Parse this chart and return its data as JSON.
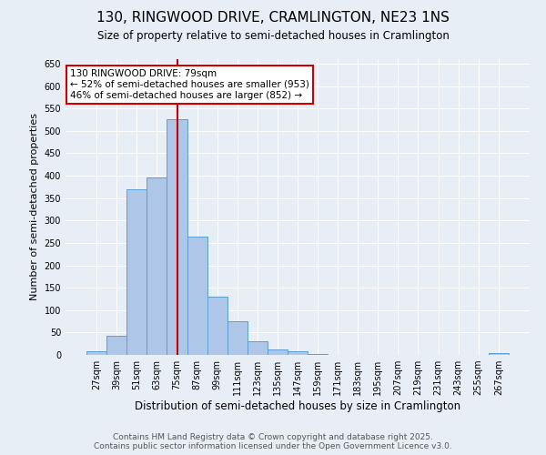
{
  "title": "130, RINGWOOD DRIVE, CRAMLINGTON, NE23 1NS",
  "subtitle": "Size of property relative to semi-detached houses in Cramlington",
  "xlabel": "Distribution of semi-detached houses by size in Cramlington",
  "ylabel": "Number of semi-detached properties",
  "categories": [
    "27sqm",
    "39sqm",
    "51sqm",
    "63sqm",
    "75sqm",
    "87sqm",
    "99sqm",
    "111sqm",
    "123sqm",
    "135sqm",
    "147sqm",
    "159sqm",
    "171sqm",
    "183sqm",
    "195sqm",
    "207sqm",
    "219sqm",
    "231sqm",
    "243sqm",
    "255sqm",
    "267sqm"
  ],
  "values": [
    8,
    42,
    370,
    395,
    525,
    265,
    130,
    75,
    30,
    12,
    9,
    3,
    1,
    0,
    0,
    0,
    0,
    0,
    0,
    0,
    5
  ],
  "bar_color": "#aec6e8",
  "bar_edge_color": "#5a9fd4",
  "bar_width": 1.0,
  "vline_x": 4,
  "annotation_title": "130 RINGWOOD DRIVE: 79sqm",
  "annotation_line2": "← 52% of semi-detached houses are smaller (953)",
  "annotation_line3": "46% of semi-detached houses are larger (852) →",
  "annotation_box_color": "#ffffff",
  "annotation_box_edge": "#cc0000",
  "vline_color": "#cc0000",
  "background_color": "#e8eef5",
  "grid_color": "#ffffff",
  "footer_line1": "Contains HM Land Registry data © Crown copyright and database right 2025.",
  "footer_line2": "Contains public sector information licensed under the Open Government Licence v3.0.",
  "ylim": [
    0,
    660
  ],
  "yticks": [
    0,
    50,
    100,
    150,
    200,
    250,
    300,
    350,
    400,
    450,
    500,
    550,
    600,
    650
  ],
  "title_fontsize": 11,
  "subtitle_fontsize": 8.5,
  "xlabel_fontsize": 8.5,
  "ylabel_fontsize": 8,
  "tick_fontsize": 7,
  "footer_fontsize": 6.5,
  "ann_fontsize": 7.5
}
